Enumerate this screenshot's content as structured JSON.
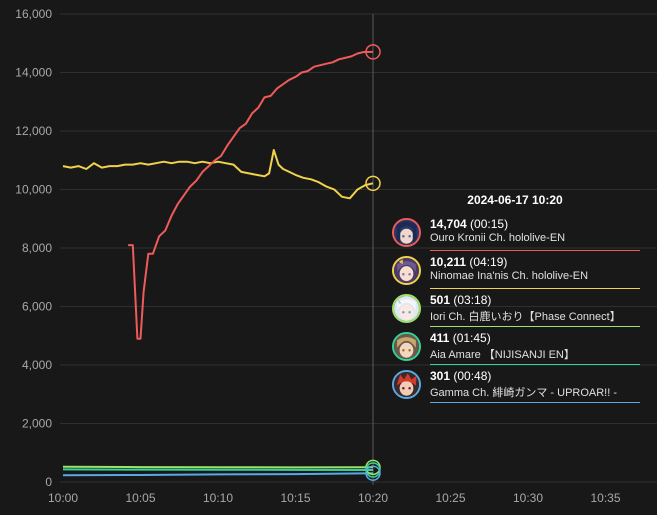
{
  "chart_data": {
    "type": "line",
    "x_ticks": [
      "10:00",
      "10:05",
      "10:10",
      "10:15",
      "10:20",
      "10:25",
      "10:30",
      "10:35"
    ],
    "y_ticks": [
      "0",
      "2,000",
      "4,000",
      "6,000",
      "8,000",
      "10,000",
      "12,000",
      "14,000",
      "16,000"
    ],
    "xlim_minutes": [
      0,
      37.5
    ],
    "ylim": [
      0,
      16000
    ],
    "grid": "horizontal",
    "crosshair_minute": 20,
    "series": [
      {
        "name": "Ouro Kronii Ch. hololive-EN",
        "color": "#ef5b5b",
        "points": [
          [
            4.2,
            8100
          ],
          [
            4.5,
            8100
          ],
          [
            4.8,
            4900
          ],
          [
            5.0,
            4900
          ],
          [
            5.2,
            6500
          ],
          [
            5.5,
            7800
          ],
          [
            5.8,
            7800
          ],
          [
            6.2,
            8400
          ],
          [
            6.6,
            8600
          ],
          [
            7.0,
            9100
          ],
          [
            7.4,
            9500
          ],
          [
            7.8,
            9800
          ],
          [
            8.2,
            10100
          ],
          [
            8.6,
            10300
          ],
          [
            9.0,
            10600
          ],
          [
            9.4,
            10800
          ],
          [
            9.8,
            11000
          ],
          [
            10.2,
            11150
          ],
          [
            10.6,
            11500
          ],
          [
            11.0,
            11800
          ],
          [
            11.4,
            12100
          ],
          [
            11.8,
            12250
          ],
          [
            12.2,
            12600
          ],
          [
            12.6,
            12800
          ],
          [
            13.0,
            13150
          ],
          [
            13.4,
            13200
          ],
          [
            13.8,
            13450
          ],
          [
            14.2,
            13600
          ],
          [
            14.6,
            13750
          ],
          [
            15.0,
            13850
          ],
          [
            15.4,
            14000
          ],
          [
            15.8,
            14050
          ],
          [
            16.2,
            14200
          ],
          [
            16.6,
            14250
          ],
          [
            17.0,
            14300
          ],
          [
            17.4,
            14350
          ],
          [
            17.8,
            14450
          ],
          [
            18.2,
            14500
          ],
          [
            18.6,
            14550
          ],
          [
            19.0,
            14650
          ],
          [
            19.4,
            14700
          ],
          [
            20.0,
            14704
          ]
        ],
        "tooltip_value": "14,704",
        "tooltip_duration": "(00:15)"
      },
      {
        "name": "Ninomae Ina'nis Ch. hololive-EN",
        "color": "#f2d24b",
        "points": [
          [
            0.0,
            10800
          ],
          [
            0.5,
            10750
          ],
          [
            1.0,
            10800
          ],
          [
            1.5,
            10700
          ],
          [
            2.0,
            10900
          ],
          [
            2.5,
            10750
          ],
          [
            3.0,
            10800
          ],
          [
            3.5,
            10800
          ],
          [
            4.0,
            10850
          ],
          [
            4.5,
            10850
          ],
          [
            5.0,
            10900
          ],
          [
            5.5,
            10850
          ],
          [
            6.0,
            10900
          ],
          [
            6.5,
            10950
          ],
          [
            7.0,
            10900
          ],
          [
            7.5,
            10950
          ],
          [
            8.0,
            10950
          ],
          [
            8.5,
            10900
          ],
          [
            9.0,
            10950
          ],
          [
            9.5,
            10900
          ],
          [
            10.0,
            10950
          ],
          [
            10.5,
            10900
          ],
          [
            11.0,
            10850
          ],
          [
            11.5,
            10600
          ],
          [
            12.0,
            10550
          ],
          [
            12.5,
            10500
          ],
          [
            13.0,
            10450
          ],
          [
            13.3,
            10550
          ],
          [
            13.6,
            11350
          ],
          [
            13.9,
            10850
          ],
          [
            14.2,
            10700
          ],
          [
            14.6,
            10600
          ],
          [
            15.0,
            10500
          ],
          [
            15.5,
            10400
          ],
          [
            16.0,
            10350
          ],
          [
            16.5,
            10250
          ],
          [
            17.0,
            10100
          ],
          [
            17.5,
            10000
          ],
          [
            18.0,
            9750
          ],
          [
            18.5,
            9700
          ],
          [
            19.0,
            10000
          ],
          [
            19.5,
            10150
          ],
          [
            20.0,
            10211
          ]
        ],
        "tooltip_value": "10,211",
        "tooltip_duration": "(04:19)"
      },
      {
        "name": "Iori Ch. 白鹿いおり【Phase Connect】",
        "color": "#9be36b",
        "points": [
          [
            0,
            520
          ],
          [
            5,
            510
          ],
          [
            10,
            505
          ],
          [
            15,
            500
          ],
          [
            20,
            501
          ]
        ],
        "tooltip_value": "501",
        "tooltip_duration": "(03:18)"
      },
      {
        "name": "Aia Amare 【NIJISANJI EN】",
        "color": "#34d399",
        "points": [
          [
            0,
            430
          ],
          [
            5,
            425
          ],
          [
            10,
            420
          ],
          [
            15,
            415
          ],
          [
            20,
            411
          ]
        ],
        "tooltip_value": "411",
        "tooltip_duration": "(01:45)"
      },
      {
        "name": "Gamma Ch. 緋崎ガンマ - UPROAR!! -",
        "color": "#5aa9e6",
        "points": [
          [
            0,
            230
          ],
          [
            5,
            240
          ],
          [
            10,
            260
          ],
          [
            15,
            270
          ],
          [
            20,
            301
          ]
        ],
        "tooltip_value": "301",
        "tooltip_duration": "(00:48)"
      }
    ]
  },
  "tooltip": {
    "time": "2024-06-17 10:20"
  },
  "avatar_icons": [
    "avatar-kronii-icon",
    "avatar-ina-icon",
    "avatar-iori-icon",
    "avatar-aia-icon",
    "avatar-gamma-icon"
  ]
}
